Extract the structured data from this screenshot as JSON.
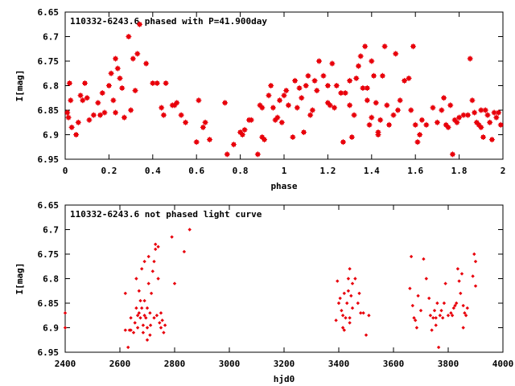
{
  "colors": {
    "points": "#e8000b",
    "axis": "#000000",
    "background": "#ffffff"
  },
  "chart_data": [
    {
      "type": "scatter",
      "title": "110332-6243.6 phased with P=41.900day",
      "xlabel": "phase",
      "ylabel": "I[mag]",
      "xlim": [
        0,
        2
      ],
      "ylim": [
        6.95,
        6.65
      ],
      "y_inverted": true,
      "grid": false,
      "xticks": [
        "0",
        "0.2",
        "0.4",
        "0.6",
        "0.8",
        "1",
        "1.2",
        "1.4",
        "1.6",
        "1.8",
        "2"
      ],
      "yticks": [
        "6.65",
        "6.7",
        "6.75",
        "6.8",
        "6.85",
        "6.9",
        "6.95"
      ],
      "marker": "filled-square",
      "points": [
        [
          0.01,
          6.855
        ],
        [
          0.015,
          6.865
        ],
        [
          0.02,
          6.795
        ],
        [
          0.025,
          6.83
        ],
        [
          0.03,
          6.885
        ],
        [
          0.05,
          6.9
        ],
        [
          0.06,
          6.875
        ],
        [
          0.07,
          6.82
        ],
        [
          0.08,
          6.83
        ],
        [
          0.09,
          6.795
        ],
        [
          0.1,
          6.825
        ],
        [
          0.11,
          6.87
        ],
        [
          0.13,
          6.86
        ],
        [
          0.15,
          6.835
        ],
        [
          0.16,
          6.86
        ],
        [
          0.17,
          6.815
        ],
        [
          0.18,
          6.855
        ],
        [
          0.2,
          6.8
        ],
        [
          0.21,
          6.775
        ],
        [
          0.22,
          6.83
        ],
        [
          0.23,
          6.855
        ],
        [
          0.23,
          6.745
        ],
        [
          0.24,
          6.765
        ],
        [
          0.25,
          6.785
        ],
        [
          0.26,
          6.805
        ],
        [
          0.27,
          6.865
        ],
        [
          0.29,
          6.7
        ],
        [
          0.3,
          6.85
        ],
        [
          0.31,
          6.745
        ],
        [
          0.32,
          6.81
        ],
        [
          0.33,
          6.735
        ],
        [
          0.34,
          6.675
        ],
        [
          0.37,
          6.755
        ],
        [
          0.4,
          6.795
        ],
        [
          0.42,
          6.795
        ],
        [
          0.44,
          6.845
        ],
        [
          0.45,
          6.86
        ],
        [
          0.46,
          6.795
        ],
        [
          0.49,
          6.84
        ],
        [
          0.5,
          6.84
        ],
        [
          0.51,
          6.835
        ],
        [
          0.53,
          6.86
        ],
        [
          0.55,
          6.875
        ],
        [
          0.6,
          6.915
        ],
        [
          0.61,
          6.83
        ],
        [
          0.63,
          6.885
        ],
        [
          0.64,
          6.875
        ],
        [
          0.66,
          6.91
        ],
        [
          0.73,
          6.835
        ],
        [
          0.74,
          6.94
        ],
        [
          0.77,
          6.92
        ],
        [
          0.8,
          6.895
        ],
        [
          0.81,
          6.9
        ],
        [
          0.82,
          6.89
        ],
        [
          0.84,
          6.87
        ],
        [
          0.85,
          6.87
        ],
        [
          0.88,
          6.94
        ],
        [
          0.89,
          6.84
        ],
        [
          0.9,
          6.845
        ],
        [
          0.9,
          6.905
        ],
        [
          0.91,
          6.91
        ],
        [
          0.93,
          6.82
        ],
        [
          0.94,
          6.8
        ],
        [
          0.95,
          6.845
        ],
        [
          0.96,
          6.87
        ],
        [
          0.97,
          6.865
        ],
        [
          0.98,
          6.83
        ],
        [
          0.99,
          6.875
        ],
        [
          1.0,
          6.82
        ],
        [
          1.01,
          6.81
        ],
        [
          1.02,
          6.84
        ],
        [
          1.04,
          6.905
        ],
        [
          1.05,
          6.79
        ],
        [
          1.06,
          6.845
        ],
        [
          1.07,
          6.805
        ],
        [
          1.08,
          6.825
        ],
        [
          1.09,
          6.895
        ],
        [
          1.1,
          6.8
        ],
        [
          1.11,
          6.78
        ],
        [
          1.12,
          6.86
        ],
        [
          1.13,
          6.85
        ],
        [
          1.14,
          6.79
        ],
        [
          1.15,
          6.81
        ],
        [
          1.16,
          6.75
        ],
        [
          1.18,
          6.78
        ],
        [
          1.2,
          6.8
        ],
        [
          1.2,
          6.835
        ],
        [
          1.22,
          6.755
        ],
        [
          1.21,
          6.84
        ],
        [
          1.23,
          6.845
        ],
        [
          1.24,
          6.8
        ],
        [
          1.26,
          6.815
        ],
        [
          1.27,
          6.915
        ],
        [
          1.28,
          6.815
        ],
        [
          1.3,
          6.84
        ],
        [
          1.3,
          6.79
        ],
        [
          1.31,
          6.905
        ],
        [
          1.32,
          6.86
        ],
        [
          1.33,
          6.785
        ],
        [
          1.34,
          6.76
        ],
        [
          1.35,
          6.74
        ],
        [
          1.36,
          6.805
        ],
        [
          1.37,
          6.72
        ],
        [
          1.38,
          6.805
        ],
        [
          1.38,
          6.83
        ],
        [
          1.39,
          6.88
        ],
        [
          1.4,
          6.865
        ],
        [
          1.4,
          6.75
        ],
        [
          1.41,
          6.78
        ],
        [
          1.42,
          6.835
        ],
        [
          1.43,
          6.9
        ],
        [
          1.43,
          6.895
        ],
        [
          1.44,
          6.87
        ],
        [
          1.45,
          6.78
        ],
        [
          1.46,
          6.72
        ],
        [
          1.47,
          6.84
        ],
        [
          1.48,
          6.88
        ],
        [
          1.5,
          6.86
        ],
        [
          1.51,
          6.735
        ],
        [
          1.52,
          6.85
        ],
        [
          1.53,
          6.83
        ],
        [
          1.55,
          6.79
        ],
        [
          1.57,
          6.785
        ],
        [
          1.58,
          6.85
        ],
        [
          1.59,
          6.72
        ],
        [
          1.6,
          6.88
        ],
        [
          1.61,
          6.915
        ],
        [
          1.62,
          6.9
        ],
        [
          1.63,
          6.87
        ],
        [
          1.65,
          6.88
        ],
        [
          1.68,
          6.845
        ],
        [
          1.7,
          6.875
        ],
        [
          1.72,
          6.85
        ],
        [
          1.73,
          6.825
        ],
        [
          1.74,
          6.88
        ],
        [
          1.75,
          6.885
        ],
        [
          1.76,
          6.84
        ],
        [
          1.77,
          6.94
        ],
        [
          1.78,
          6.87
        ],
        [
          1.79,
          6.875
        ],
        [
          1.8,
          6.865
        ],
        [
          1.82,
          6.86
        ],
        [
          1.84,
          6.86
        ],
        [
          1.85,
          6.745
        ],
        [
          1.86,
          6.83
        ],
        [
          1.87,
          6.855
        ],
        [
          1.88,
          6.875
        ],
        [
          1.89,
          6.88
        ],
        [
          1.9,
          6.885
        ],
        [
          1.9,
          6.85
        ],
        [
          1.91,
          6.905
        ],
        [
          1.92,
          6.85
        ],
        [
          1.93,
          6.86
        ],
        [
          1.94,
          6.875
        ],
        [
          1.95,
          6.91
        ],
        [
          1.96,
          6.855
        ],
        [
          1.97,
          6.865
        ],
        [
          1.98,
          6.855
        ],
        [
          1.99,
          6.88
        ]
      ]
    },
    {
      "type": "scatter",
      "title": "110332-6243.6 not phased light curve",
      "xlabel": "hjd0",
      "ylabel": "I[mag]",
      "xlim": [
        2400,
        4000
      ],
      "ylim": [
        6.95,
        6.65
      ],
      "y_inverted": true,
      "grid": false,
      "xticks": [
        "2400",
        "2600",
        "2800",
        "3000",
        "3200",
        "3400",
        "3600",
        "3800",
        "4000"
      ],
      "yticks": [
        "6.65",
        "6.7",
        "6.75",
        "6.8",
        "6.85",
        "6.9",
        "6.95"
      ],
      "marker": "small-diamond",
      "points": [
        [
          2400,
          6.87
        ],
        [
          2400,
          6.9
        ],
        [
          2620,
          6.83
        ],
        [
          2620,
          6.905
        ],
        [
          2630,
          6.94
        ],
        [
          2635,
          6.905
        ],
        [
          2640,
          6.88
        ],
        [
          2640,
          6.905
        ],
        [
          2650,
          6.91
        ],
        [
          2655,
          6.89
        ],
        [
          2660,
          6.8
        ],
        [
          2660,
          6.86
        ],
        [
          2665,
          6.875
        ],
        [
          2665,
          6.9
        ],
        [
          2670,
          6.825
        ],
        [
          2670,
          6.87
        ],
        [
          2675,
          6.845
        ],
        [
          2675,
          6.88
        ],
        [
          2680,
          6.78
        ],
        [
          2680,
          6.86
        ],
        [
          2685,
          6.895
        ],
        [
          2685,
          6.91
        ],
        [
          2690,
          6.765
        ],
        [
          2690,
          6.845
        ],
        [
          2690,
          6.875
        ],
        [
          2695,
          6.88
        ],
        [
          2700,
          6.9
        ],
        [
          2700,
          6.925
        ],
        [
          2700,
          6.86
        ],
        [
          2705,
          6.81
        ],
        [
          2705,
          6.755
        ],
        [
          2710,
          6.87
        ],
        [
          2710,
          6.915
        ],
        [
          2712,
          6.895
        ],
        [
          2715,
          6.83
        ],
        [
          2720,
          6.785
        ],
        [
          2725,
          6.88
        ],
        [
          2725,
          6.765
        ],
        [
          2730,
          6.74
        ],
        [
          2730,
          6.73
        ],
        [
          2735,
          6.875
        ],
        [
          2740,
          6.8
        ],
        [
          2740,
          6.735
        ],
        [
          2745,
          6.89
        ],
        [
          2750,
          6.87
        ],
        [
          2750,
          6.9
        ],
        [
          2755,
          6.885
        ],
        [
          2760,
          6.91
        ],
        [
          2765,
          6.895
        ],
        [
          2790,
          6.715
        ],
        [
          2800,
          6.81
        ],
        [
          2835,
          6.745
        ],
        [
          2855,
          6.7
        ],
        [
          3390,
          6.885
        ],
        [
          3395,
          6.805
        ],
        [
          3400,
          6.85
        ],
        [
          3405,
          6.84
        ],
        [
          3410,
          6.865
        ],
        [
          3415,
          6.875
        ],
        [
          3415,
          6.9
        ],
        [
          3420,
          6.83
        ],
        [
          3420,
          6.905
        ],
        [
          3425,
          6.88
        ],
        [
          3430,
          6.85
        ],
        [
          3435,
          6.825
        ],
        [
          3435,
          6.8
        ],
        [
          3440,
          6.88
        ],
        [
          3440,
          6.89
        ],
        [
          3440,
          6.78
        ],
        [
          3445,
          6.835
        ],
        [
          3450,
          6.86
        ],
        [
          3450,
          6.81
        ],
        [
          3460,
          6.8
        ],
        [
          3470,
          6.85
        ],
        [
          3475,
          6.83
        ],
        [
          3480,
          6.87
        ],
        [
          3490,
          6.87
        ],
        [
          3500,
          6.915
        ],
        [
          3510,
          6.875
        ],
        [
          3660,
          6.82
        ],
        [
          3665,
          6.755
        ],
        [
          3670,
          6.855
        ],
        [
          3675,
          6.88
        ],
        [
          3680,
          6.885
        ],
        [
          3685,
          6.9
        ],
        [
          3690,
          6.835
        ],
        [
          3700,
          6.865
        ],
        [
          3710,
          6.76
        ],
        [
          3720,
          6.8
        ],
        [
          3730,
          6.84
        ],
        [
          3735,
          6.875
        ],
        [
          3740,
          6.905
        ],
        [
          3745,
          6.88
        ],
        [
          3750,
          6.865
        ],
        [
          3755,
          6.895
        ],
        [
          3755,
          6.88
        ],
        [
          3760,
          6.85
        ],
        [
          3765,
          6.94
        ],
        [
          3770,
          6.875
        ],
        [
          3775,
          6.865
        ],
        [
          3780,
          6.88
        ],
        [
          3785,
          6.85
        ],
        [
          3790,
          6.81
        ],
        [
          3800,
          6.875
        ],
        [
          3810,
          6.87
        ],
        [
          3815,
          6.875
        ],
        [
          3820,
          6.86
        ],
        [
          3825,
          6.855
        ],
        [
          3830,
          6.85
        ],
        [
          3835,
          6.78
        ],
        [
          3840,
          6.805
        ],
        [
          3845,
          6.83
        ],
        [
          3850,
          6.79
        ],
        [
          3855,
          6.855
        ],
        [
          3855,
          6.9
        ],
        [
          3860,
          6.87
        ],
        [
          3865,
          6.875
        ],
        [
          3870,
          6.86
        ],
        [
          3890,
          6.795
        ],
        [
          3895,
          6.75
        ],
        [
          3900,
          6.765
        ],
        [
          3900,
          6.815
        ]
      ]
    }
  ]
}
